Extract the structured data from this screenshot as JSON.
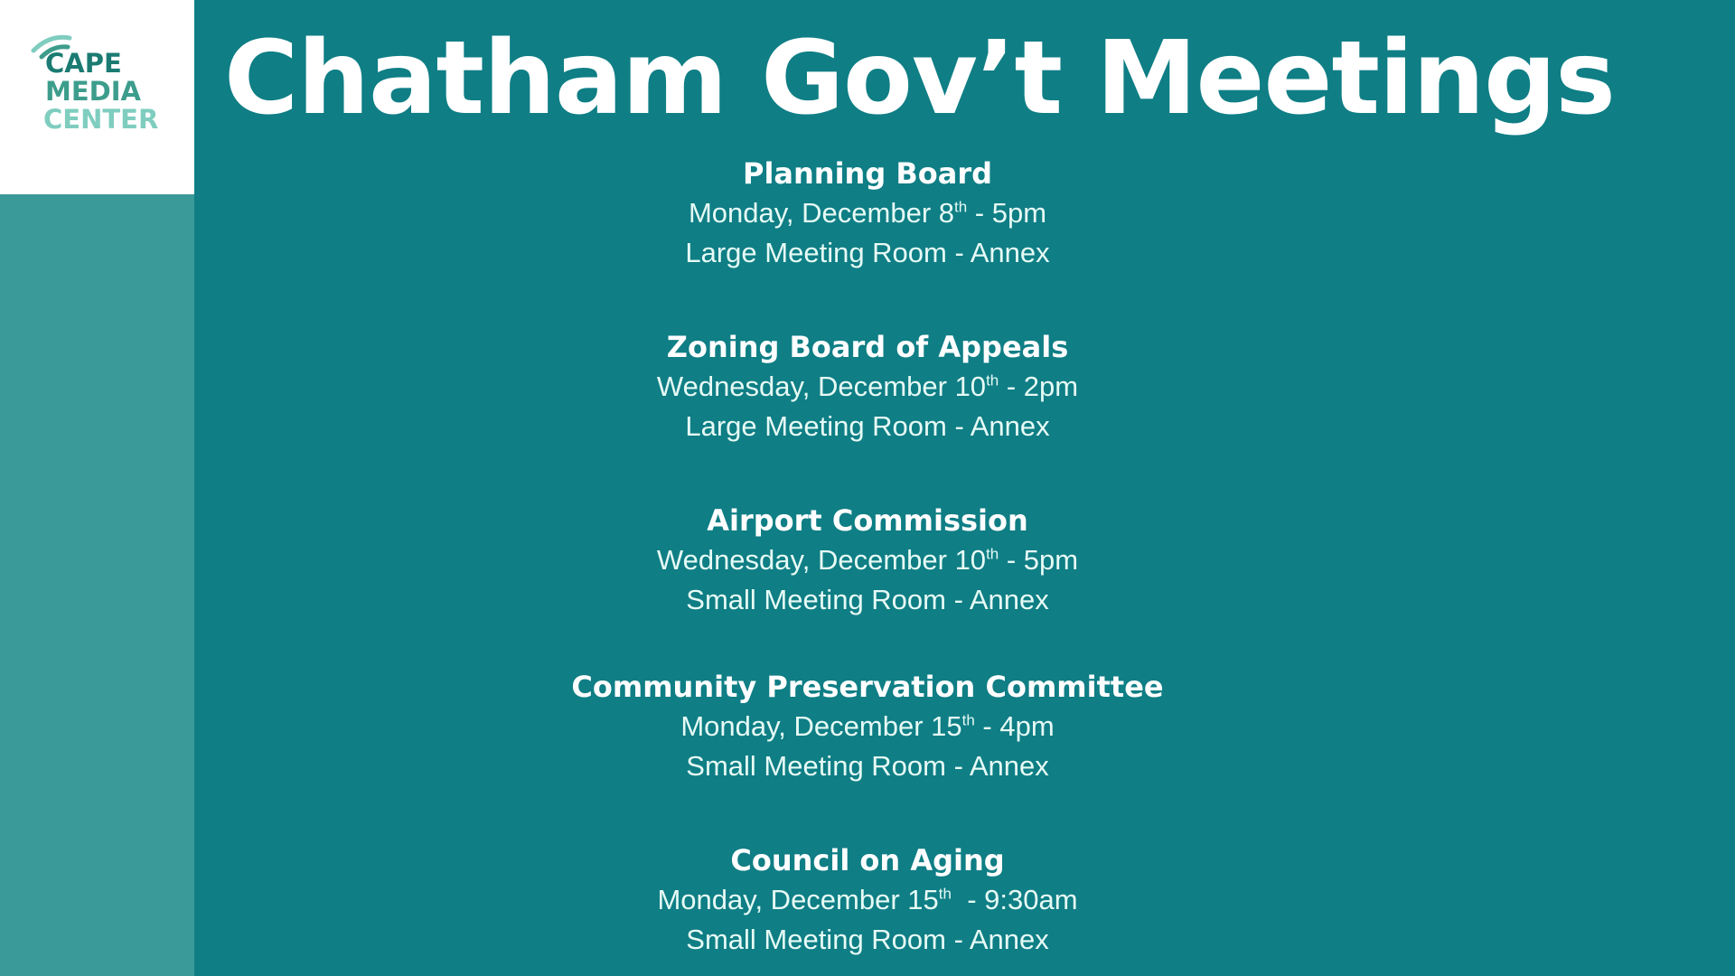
{
  "logo": {
    "line1": "CAPE",
    "line2": "MEDIA",
    "line3": "CENTER",
    "colors": [
      "#1b7b72",
      "#3d9d8c",
      "#7fcdbf"
    ]
  },
  "title": "Chatham Gov’t Meetings",
  "colors": {
    "background": "#0f7e85",
    "sidebar": "#3a9999"
  },
  "meetings": [
    {
      "name": "Planning Board",
      "date": "Monday, December 8",
      "sup": "th",
      "time": " - 5pm",
      "location": "Large Meeting Room - Annex"
    },
    {
      "name": "Zoning Board of Appeals",
      "date": "Wednesday, December 10",
      "sup": "th",
      "time": " - 2pm",
      "location": "Large Meeting Room - Annex"
    },
    {
      "name": "Airport Commission",
      "date": "Wednesday, December 10",
      "sup": "th",
      "time": " - 5pm",
      "location": "Small Meeting Room - Annex"
    },
    {
      "name": "Community Preservation Committee",
      "date": "Monday, December 15",
      "sup": "th",
      "time": " - 4pm",
      "location": "Small Meeting Room - Annex"
    },
    {
      "name": "Council on Aging",
      "date": "Monday, December 15",
      "sup": "th",
      "time": "  - 9:30am",
      "location": "Small Meeting Room - Annex"
    }
  ]
}
